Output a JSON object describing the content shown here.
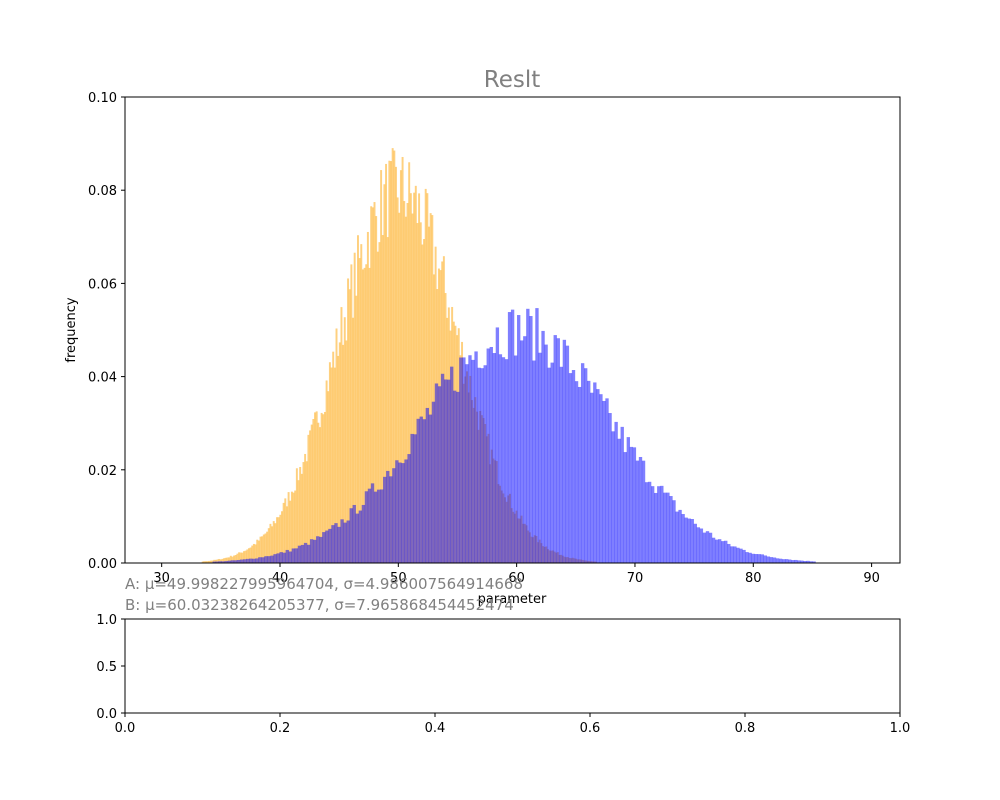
{
  "chart_data": [
    {
      "type": "histogram",
      "title": "Reslt",
      "xlabel": "parameter",
      "ylabel": "frequency",
      "xlim": [
        26.9,
        92.4
      ],
      "ylim": [
        0,
        0.1
      ],
      "xticks": [
        "30",
        "40",
        "50",
        "60",
        "70",
        "80",
        "90"
      ],
      "yticks": [
        "0.00",
        "0.02",
        "0.04",
        "0.06",
        "0.08",
        "0.10"
      ],
      "grid": false,
      "series": [
        {
          "name": "A",
          "color": "#FDB73B",
          "opacity": 0.65,
          "mu": 49.998227995964704,
          "sigma": 4.986007564914668,
          "peak": 0.08
        },
        {
          "name": "B",
          "color": "#0000FF",
          "opacity": 0.5,
          "mu": 60.03238264205377,
          "sigma": 7.965868454452474,
          "peak": 0.05
        }
      ],
      "annotations": [
        "A: μ=49.998227995964704, σ=4.986007564914668",
        "B: μ=60.03238264205377, σ=7.965868454452474"
      ]
    },
    {
      "type": "empty",
      "xlim": [
        0,
        1
      ],
      "ylim": [
        0,
        1
      ],
      "xticks": [
        "0.0",
        "0.2",
        "0.4",
        "0.6",
        "0.8",
        "1.0"
      ],
      "yticks": [
        "0.0",
        "0.5",
        "1.0"
      ]
    }
  ]
}
